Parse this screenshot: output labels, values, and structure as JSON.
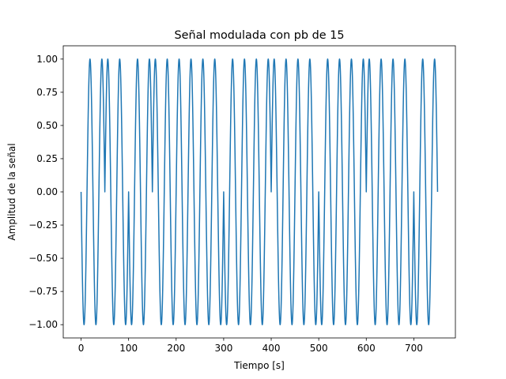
{
  "chart_data": {
    "type": "line",
    "title": "Señal modulada con pb de 15",
    "xlabel": "Tiempo [s]",
    "ylabel": "Amplitud de la señal",
    "xlim": [
      -37.5,
      787.5
    ],
    "ylim": [
      -1.1,
      1.1
    ],
    "xticks": [
      0,
      100,
      200,
      300,
      400,
      500,
      600,
      700
    ],
    "yticks": [
      -1.0,
      -0.75,
      -0.5,
      -0.25,
      0.0,
      0.25,
      0.5,
      0.75,
      1.0
    ],
    "ytick_labels": [
      "−1.00",
      "−0.75",
      "−0.50",
      "−0.25",
      "0.00",
      "0.25",
      "0.50",
      "0.75",
      "1.00"
    ],
    "grid": false,
    "legend": "none",
    "series": [
      {
        "color": "#1f77b4",
        "bit_duration": 50,
        "carrier_cycles_per_bit": 2,
        "bits": [
          0,
          1,
          0,
          1,
          1,
          1,
          0,
          0,
          1,
          1,
          0,
          0,
          1,
          1,
          0
        ],
        "segment_start_phase_deg": [
          180,
          0,
          180,
          0,
          0,
          0,
          180,
          180,
          0,
          0,
          180,
          180,
          0,
          0,
          180
        ],
        "x_range": [
          0,
          750
        ]
      }
    ],
    "colors": {
      "line": "#1f77b4",
      "axes": "#000000",
      "background": "#ffffff"
    }
  }
}
